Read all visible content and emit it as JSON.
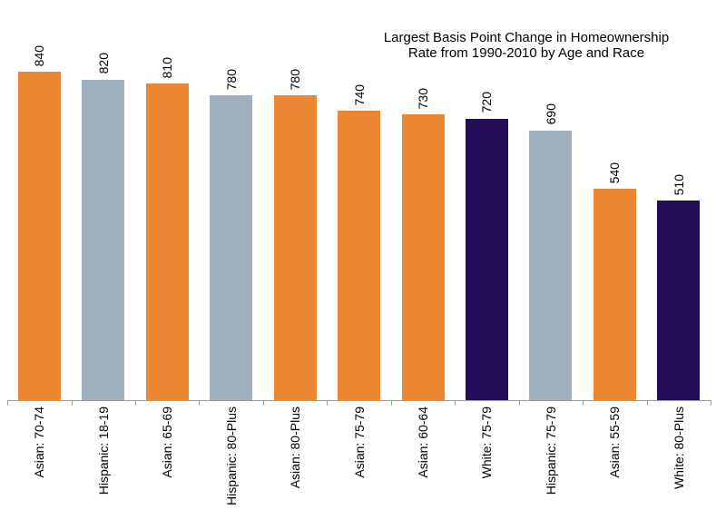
{
  "chart_data": {
    "type": "bar",
    "title": "Largest Basis Point Change in Homeownership Rate from 1990-2010 by Age and Race",
    "title_lines": [
      "Largest Basis Point Change in Homeownership",
      "Rate from 1990-2010 by Age and Race"
    ],
    "categories": [
      "Asian: 70-74",
      "Hispanic: 18-19",
      "Asian: 65-69",
      "Hispanic: 80-Plus",
      "Asian: 80-Plus",
      "Asian: 75-79",
      "Asian: 60-64",
      "White: 75-79",
      "Hispanic: 75-79",
      "Asian: 55-59",
      "White: 80-Plus"
    ],
    "values": [
      840,
      820,
      810,
      780,
      780,
      740,
      730,
      720,
      690,
      540,
      510
    ],
    "value_labels": [
      "840",
      "820",
      "810",
      "780",
      "780",
      "740",
      "730",
      "720",
      "690",
      "540",
      "510"
    ],
    "groups": [
      "Asian",
      "Hispanic",
      "Asian",
      "Hispanic",
      "Asian",
      "Asian",
      "Asian",
      "White",
      "Hispanic",
      "Asian",
      "White"
    ],
    "palette": {
      "Asian": "#ED8633",
      "Hispanic": "#A0AFBC",
      "White": "#250E5A"
    },
    "axis_color": "#9D9D9D",
    "label_color": "#000000",
    "xlabel": "",
    "ylabel": "",
    "ylim": [
      0,
      840
    ],
    "grid": false,
    "legend": false,
    "y_axis_visible": false,
    "bar_label_rotation": -90,
    "tick_label_rotation": -90
  }
}
